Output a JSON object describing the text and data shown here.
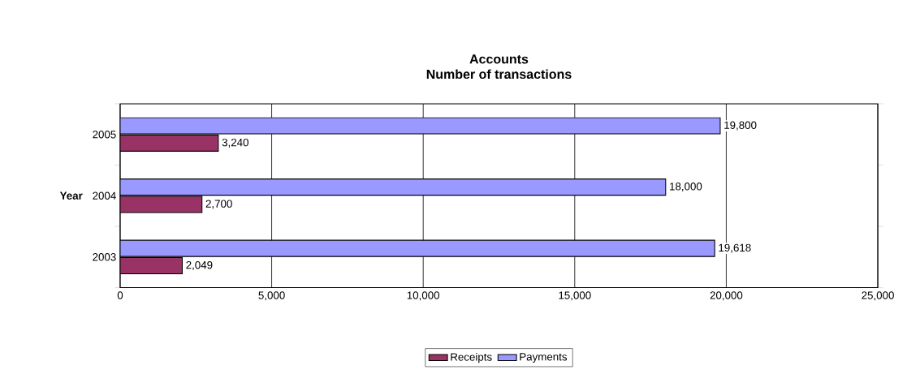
{
  "chart_data": {
    "type": "bar",
    "orientation": "horizontal",
    "title": "Accounts",
    "subtitle": "Number of transactions",
    "ylabel": "Year",
    "categories": [
      "2005",
      "2004",
      "2003"
    ],
    "series": [
      {
        "name": "Receipts",
        "color": "#993366",
        "values": [
          3240,
          2700,
          2049
        ],
        "value_labels": [
          "3,240",
          "2,700",
          "2,049"
        ]
      },
      {
        "name": "Payments",
        "color": "#9999ff",
        "values": [
          19800,
          18000,
          19618
        ],
        "value_labels": [
          "19,800",
          "18,000",
          "19,618"
        ]
      }
    ],
    "xlim": [
      0,
      25000
    ],
    "xticks": [
      0,
      {
        "value": 5000,
        "label": "5,000"
      },
      {
        "value": 10000,
        "label": "10,000"
      },
      {
        "value": 15000,
        "label": "15,000"
      },
      {
        "value": 20000,
        "label": "20,000"
      },
      {
        "value": 25000,
        "label": "25,000"
      }
    ],
    "grid": "x",
    "legend": "bottom"
  }
}
